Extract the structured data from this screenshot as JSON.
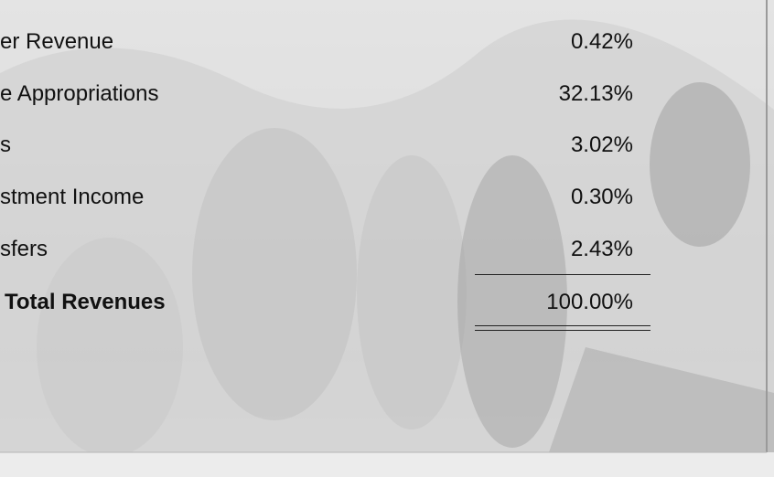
{
  "table": {
    "rows": [
      [
        "er Revenue",
        "0.42%"
      ],
      [
        "e Appropriations",
        "32.13%"
      ],
      [
        "s",
        "3.02%"
      ],
      [
        "stment Income",
        "0.30%"
      ],
      [
        "sfers",
        "2.43%"
      ],
      [
        "Total Revenues",
        "100.00%"
      ]
    ]
  }
}
